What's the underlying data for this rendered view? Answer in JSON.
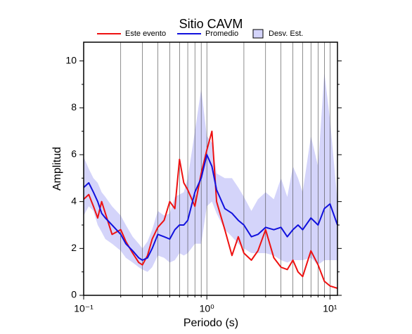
{
  "chart_data": {
    "type": "line",
    "title": "Sitio CAVM",
    "x_label": "Periodo (s)",
    "y_label": "Amplitud",
    "xscale": "log",
    "grid": "x",
    "x": [
      0.1,
      0.11,
      0.12,
      0.13,
      0.14,
      0.15,
      0.17,
      0.2,
      0.22,
      0.25,
      0.28,
      0.3,
      0.33,
      0.36,
      0.4,
      0.45,
      0.5,
      0.55,
      0.6,
      0.65,
      0.7,
      0.8,
      0.9,
      1.0,
      1.1,
      1.2,
      1.4,
      1.6,
      1.8,
      2.0,
      2.3,
      2.6,
      3,
      3.5,
      4,
      4.5,
      5,
      5.5,
      6,
      7,
      8,
      9,
      10,
      11.5
    ],
    "series": [
      {
        "name": "Este evento",
        "color": "#ee1111",
        "values": [
          4.1,
          4.3,
          3.8,
          3.3,
          4.0,
          3.5,
          2.6,
          2.8,
          2.3,
          1.8,
          1.4,
          1.3,
          1.7,
          2.4,
          2.9,
          3.2,
          4.0,
          3.7,
          5.8,
          4.8,
          4.5,
          3.8,
          5.2,
          6.2,
          7.0,
          4.0,
          2.8,
          1.7,
          2.5,
          1.8,
          1.5,
          1.9,
          2.8,
          1.6,
          1.2,
          1.1,
          1.5,
          1.0,
          0.8,
          1.9,
          1.3,
          0.6,
          0.4,
          0.3
        ]
      },
      {
        "name": "Promedio",
        "color": "#1111dd",
        "values": [
          4.6,
          4.8,
          4.4,
          4.0,
          3.5,
          3.3,
          3.0,
          2.6,
          2.2,
          1.9,
          1.6,
          1.5,
          1.6,
          2.0,
          2.6,
          2.5,
          2.4,
          2.8,
          3.0,
          3.0,
          3.2,
          4.4,
          5.0,
          6.0,
          5.5,
          4.5,
          3.7,
          3.5,
          3.2,
          3.0,
          2.5,
          2.6,
          2.9,
          2.8,
          2.9,
          2.5,
          2.8,
          3.0,
          2.8,
          3.3,
          3.0,
          3.7,
          3.9,
          3.0
        ]
      },
      {
        "name": "Desv. Est.",
        "color": "#d4d4fa",
        "type": "band",
        "upper": [
          5.9,
          5.4,
          5.0,
          4.8,
          4.4,
          4.2,
          3.8,
          3.4,
          3.0,
          2.5,
          2.2,
          2.0,
          2.3,
          2.8,
          3.6,
          3.4,
          3.5,
          4.2,
          4.3,
          4.4,
          5.0,
          7.0,
          8.8,
          6.8,
          6.5,
          5.2,
          5.0,
          5.0,
          4.6,
          4.2,
          3.6,
          4.1,
          4.4,
          4.1,
          5.0,
          4.2,
          5.5,
          5.0,
          4.4,
          6.8,
          5.5,
          9.5,
          7.5,
          4.0
        ],
        "lower": [
          3.4,
          3.8,
          3.6,
          3.0,
          2.7,
          2.4,
          2.2,
          1.9,
          1.6,
          1.4,
          1.2,
          1.1,
          1.0,
          1.2,
          1.7,
          1.6,
          1.4,
          1.5,
          1.8,
          1.7,
          1.8,
          2.2,
          2.2,
          3.8,
          4.0,
          3.5,
          2.8,
          2.5,
          2.2,
          2.0,
          1.8,
          1.8,
          1.8,
          1.7,
          1.5,
          1.4,
          1.5,
          1.5,
          1.5,
          1.6,
          1.3,
          1.5,
          1.5,
          1.5
        ]
      }
    ],
    "xlim": [
      0.1,
      11.5
    ],
    "xticks": [
      {
        "value": 0.1,
        "label": "10⁻¹"
      },
      {
        "value": 1,
        "label": "10⁰"
      },
      {
        "value": 10,
        "label": "10¹"
      }
    ],
    "xminorticks": [
      0.2,
      0.3,
      0.4,
      0.5,
      0.6,
      0.7,
      0.8,
      0.9,
      2,
      3,
      4,
      5,
      6,
      7,
      8,
      9
    ],
    "ylim": [
      0,
      10.8
    ],
    "yticks": [
      0,
      2,
      4,
      6,
      8,
      10
    ],
    "yminorticks": [
      1,
      3,
      5,
      7,
      9
    ]
  }
}
